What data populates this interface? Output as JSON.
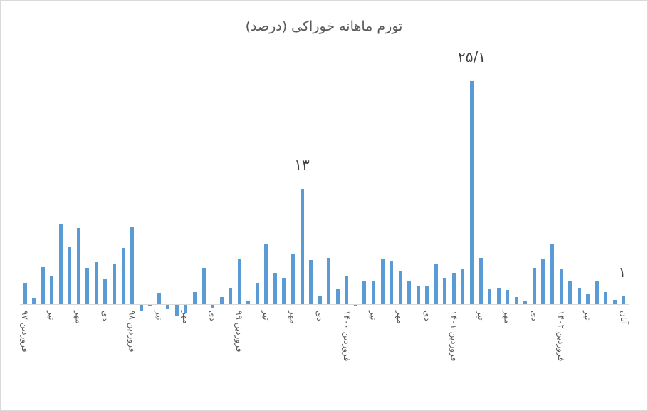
{
  "chart_data": {
    "type": "bar",
    "title": "تورم ماهانه خوراکی (درصد)",
    "xlabel": "",
    "ylabel": "",
    "grid": false,
    "legend": null,
    "ylim": [
      -1.5,
      26
    ],
    "bar_color": "#5b9bd5",
    "tick_labels": [
      {
        "index": 0,
        "label": "فروردین ۹۷"
      },
      {
        "index": 3,
        "label": "تیر"
      },
      {
        "index": 6,
        "label": "مهر"
      },
      {
        "index": 9,
        "label": "دی"
      },
      {
        "index": 12,
        "label": "فروردین ۹۸"
      },
      {
        "index": 15,
        "label": "تیر"
      },
      {
        "index": 18,
        "label": "مهر"
      },
      {
        "index": 21,
        "label": "دی"
      },
      {
        "index": 24,
        "label": "فروردین ۹۹"
      },
      {
        "index": 27,
        "label": "تیر"
      },
      {
        "index": 30,
        "label": "مهر"
      },
      {
        "index": 33,
        "label": "دی"
      },
      {
        "index": 36,
        "label": "فروردین ۱۴۰۰"
      },
      {
        "index": 39,
        "label": "تیر"
      },
      {
        "index": 42,
        "label": "مهر"
      },
      {
        "index": 45,
        "label": "دی"
      },
      {
        "index": 48,
        "label": "فروردین ۱۴۰۱"
      },
      {
        "index": 51,
        "label": "تیر"
      },
      {
        "index": 54,
        "label": "مهر"
      },
      {
        "index": 57,
        "label": "دی"
      },
      {
        "index": 60,
        "label": "فروردین ۱۴۰۲"
      },
      {
        "index": 63,
        "label": "تیر"
      },
      {
        "index": 67,
        "label": "آبان"
      }
    ],
    "values": [
      2.3,
      0.7,
      4.2,
      3.1,
      9.1,
      6.4,
      8.6,
      4.1,
      4.7,
      2.8,
      4.5,
      6.3,
      8.7,
      -0.7,
      -0.2,
      1.3,
      -0.5,
      -1.3,
      -1.0,
      1.4,
      4.1,
      -0.3,
      0.8,
      1.8,
      5.1,
      0.4,
      2.4,
      6.7,
      3.5,
      3.0,
      5.7,
      13.0,
      5.0,
      0.9,
      5.2,
      1.7,
      3.1,
      -0.2,
      2.6,
      2.6,
      5.1,
      4.9,
      3.7,
      2.6,
      2.0,
      2.1,
      4.6,
      3.0,
      3.5,
      4.0,
      25.1,
      5.2,
      1.7,
      1.8,
      1.6,
      0.8,
      0.4,
      4.1,
      5.1,
      6.8,
      4.0,
      2.6,
      1.8,
      1.1,
      2.6,
      1.4,
      0.5,
      1.0
    ],
    "annotations": [
      {
        "index": 31,
        "text": "۱۳",
        "value": 13
      },
      {
        "index": 50,
        "text": "۲۵/۱",
        "value": 25.1
      },
      {
        "index": 67,
        "text": "۱",
        "value": 1
      }
    ]
  }
}
